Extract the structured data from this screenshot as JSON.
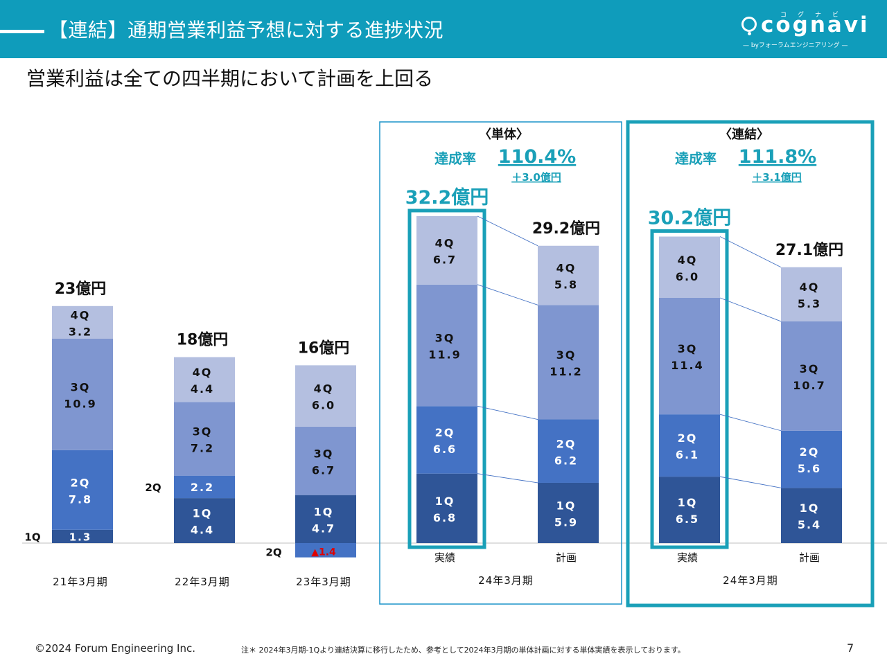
{
  "header": {
    "title": "【連結】通期営業利益予想に対する進捗状況",
    "logo_word": "cognavi",
    "logo_kana": "コグナビ",
    "logo_sub": "— byフォーラムエンジニアリング —"
  },
  "subtitle": "営業利益は全ての四半期において計画を上回る",
  "colors": {
    "header": "#0f9cbb",
    "q1": "#2f5597",
    "q2": "#4472c4",
    "q3": "#7f96d0",
    "q4": "#b4bfe0",
    "accent": "#1aa0b8",
    "negative": "#e00000"
  },
  "chart_data": {
    "type": "bar",
    "stacked": true,
    "unit": "億円",
    "bars": [
      {
        "period": "21年3月期",
        "label": "",
        "total_label": "23億円",
        "segments": [
          {
            "q": "1Q",
            "value": "1.3"
          },
          {
            "q": "2Q",
            "value": "7.8"
          },
          {
            "q": "3Q",
            "value": "10.9"
          },
          {
            "q": "4Q",
            "value": "3.2"
          }
        ]
      },
      {
        "period": "22年3月期",
        "label": "",
        "total_label": "18億円",
        "segments": [
          {
            "q": "1Q",
            "value": "4.4"
          },
          {
            "q": "2Q",
            "value": "2.2"
          },
          {
            "q": "3Q",
            "value": "7.2"
          },
          {
            "q": "4Q",
            "value": "4.4"
          }
        ]
      },
      {
        "period": "23年3月期",
        "label": "",
        "total_label": "16億円",
        "segments": [
          {
            "q": "2Q",
            "value": "▲1.4"
          },
          {
            "q": "1Q",
            "value": "4.7"
          },
          {
            "q": "3Q",
            "value": "6.7"
          },
          {
            "q": "4Q",
            "value": "6.0"
          }
        ]
      },
      {
        "period": "24年3月期",
        "label": "実績",
        "total_label": "32.2億円",
        "segments": [
          {
            "q": "1Q",
            "value": "6.8"
          },
          {
            "q": "2Q",
            "value": "6.6"
          },
          {
            "q": "3Q",
            "value": "11.9"
          },
          {
            "q": "4Q",
            "value": "6.7"
          }
        ]
      },
      {
        "period": "24年3月期",
        "label": "計画",
        "total_label": "29.2億円",
        "segments": [
          {
            "q": "1Q",
            "value": "5.9"
          },
          {
            "q": "2Q",
            "value": "6.2"
          },
          {
            "q": "3Q",
            "value": "11.2"
          },
          {
            "q": "4Q",
            "value": "5.8"
          }
        ]
      },
      {
        "period": "24年3月期",
        "label": "実績",
        "total_label": "30.2億円",
        "segments": [
          {
            "q": "1Q",
            "value": "6.5"
          },
          {
            "q": "2Q",
            "value": "6.1"
          },
          {
            "q": "3Q",
            "value": "11.4"
          },
          {
            "q": "4Q",
            "value": "6.0"
          }
        ]
      },
      {
        "period": "24年3月期",
        "label": "計画",
        "total_label": "27.1億円",
        "segments": [
          {
            "q": "1Q",
            "value": "5.4"
          },
          {
            "q": "2Q",
            "value": "5.6"
          },
          {
            "q": "3Q",
            "value": "10.7"
          },
          {
            "q": "4Q",
            "value": "5.3"
          }
        ]
      }
    ],
    "groups": [
      {
        "title": "〈単体〉",
        "rate_label": "達成率",
        "rate": "110.4%",
        "diff": "＋3.0億円",
        "period": "24年3月期"
      },
      {
        "title": "〈連結〉",
        "rate_label": "達成率",
        "rate": "111.8%",
        "diff": "＋3.1億円",
        "period": "24年3月期"
      }
    ]
  },
  "footer": {
    "copyright": "©2024 Forum Engineering Inc.",
    "note": "注＊ 2024年3月期-1Qより連結決算に移行したため、参考として2024年3月期の単体計画に対する単体実績を表示しております。",
    "page": "7"
  }
}
